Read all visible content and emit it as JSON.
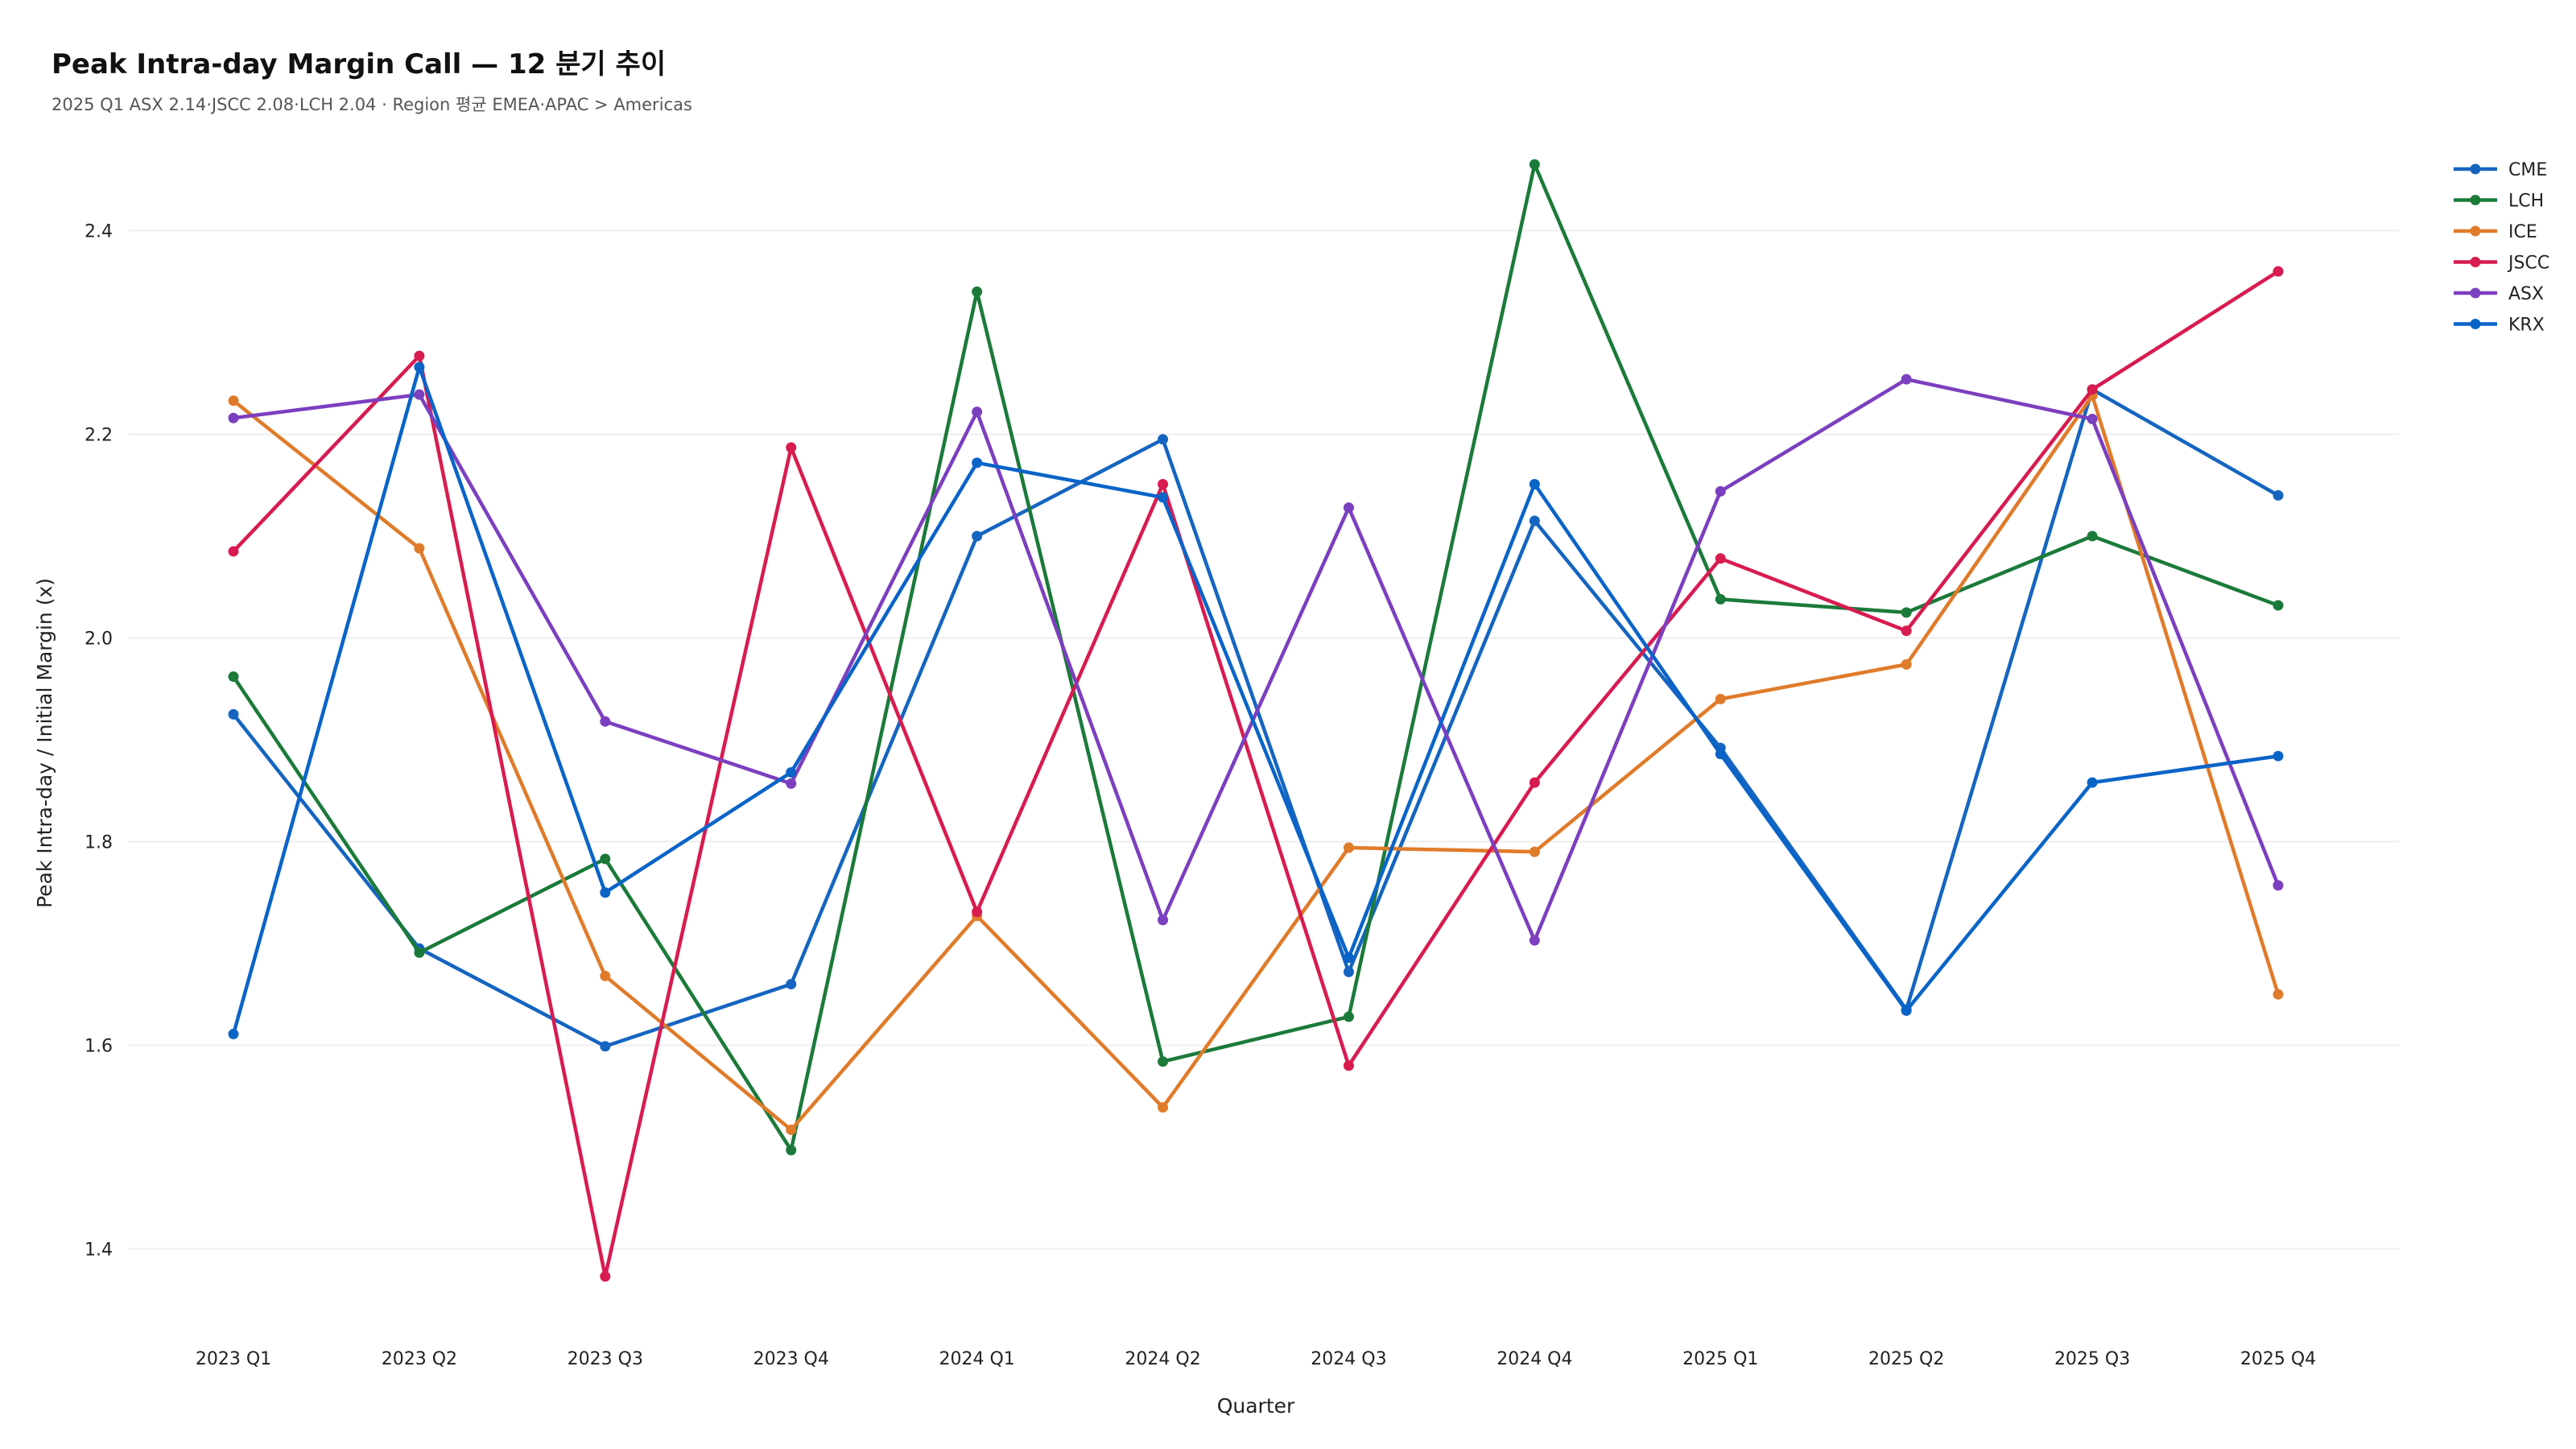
{
  "chart_data": {
    "type": "line",
    "title": "Peak Intra-day Margin Call — 12 분기 추이",
    "subtitle": "2025 Q1 ASX 2.14·JSCC 2.08·LCH 2.04 · Region 평균 EMEA·APAC > Americas",
    "xlabel": "Quarter",
    "ylabel": "Peak Intra-day / Initial Margin (x)",
    "ylim": [
      1.33,
      2.5
    ],
    "yticks": [
      "1.4",
      "1.6",
      "1.8",
      "2.0",
      "2.2",
      "2.4"
    ],
    "grid": "horizontal",
    "legend_position": "top-right",
    "categories": [
      "2023 Q1",
      "2023 Q2",
      "2023 Q3",
      "2023 Q4",
      "2024 Q1",
      "2024 Q2",
      "2024 Q3",
      "2024 Q4",
      "2025 Q1",
      "2025 Q2",
      "2025 Q3",
      "2025 Q4"
    ],
    "series": [
      {
        "name": "CME",
        "color": "#1565c0",
        "values": [
          1.925,
          1.695,
          1.599,
          1.66,
          2.1,
          2.195,
          1.672,
          2.115,
          1.892,
          1.635,
          2.244,
          2.14
        ]
      },
      {
        "name": "LCH",
        "color": "#1b7a3a",
        "values": [
          1.962,
          1.691,
          1.783,
          1.497,
          2.34,
          1.584,
          1.628,
          2.465,
          2.038,
          2.025,
          2.1,
          2.032
        ]
      },
      {
        "name": "ICE",
        "color": "#e07b2a",
        "values": [
          2.233,
          2.088,
          1.668,
          1.517,
          1.727,
          1.539,
          1.794,
          1.79,
          1.94,
          1.974,
          2.238,
          1.65
        ]
      },
      {
        "name": "JSCC",
        "color": "#d81b50",
        "values": [
          2.085,
          2.277,
          1.373,
          2.187,
          1.731,
          2.151,
          1.58,
          1.858,
          2.078,
          2.007,
          2.244,
          2.36
        ]
      },
      {
        "name": "ASX",
        "color": "#7b3fbf",
        "values": [
          2.216,
          2.239,
          1.918,
          1.857,
          2.222,
          1.723,
          2.128,
          1.703,
          2.144,
          2.254,
          2.215,
          1.757
        ]
      },
      {
        "name": "KRX",
        "color": "#0a64c8",
        "values": [
          1.611,
          2.266,
          1.75,
          1.868,
          2.172,
          2.138,
          1.686,
          2.151,
          1.886,
          1.634,
          1.858,
          1.884
        ]
      }
    ]
  }
}
